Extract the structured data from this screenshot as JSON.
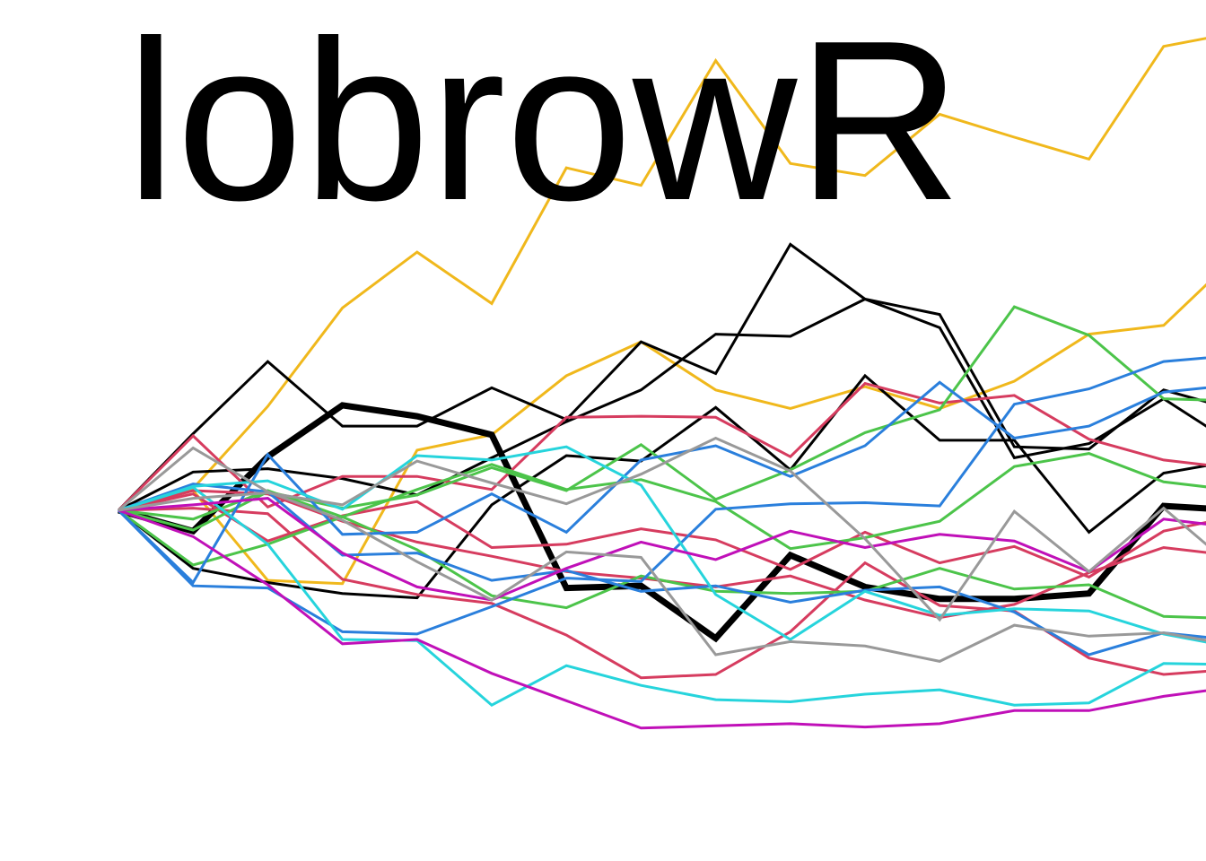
{
  "chart_data": {
    "type": "line",
    "title": "lobrowR",
    "x": [
      0,
      1,
      2,
      3,
      4,
      5,
      6,
      7,
      8,
      9,
      10,
      11,
      12,
      13,
      14,
      15
    ],
    "legend": "none",
    "grid": false,
    "axes_visible": false,
    "series": [
      {
        "color": "#f0b81c",
        "width": 3,
        "values": [
          0,
          0.2,
          0.95,
          1.85,
          2.36,
          1.89,
          3.13,
          2.97,
          4.11,
          3.17,
          3.06,
          3.62,
          3.41,
          3.21,
          4.24,
          4.37
        ]
      },
      {
        "color": "#f0b81c",
        "width": 3,
        "values": [
          0,
          0.18,
          -0.64,
          -0.67,
          0.55,
          0.69,
          1.23,
          1.54,
          1.1,
          0.93,
          1.13,
          0.93,
          1.18,
          1.61,
          1.69,
          2.34
        ]
      },
      {
        "color": "#000000",
        "width": 3,
        "values": [
          0,
          0.7,
          1.36,
          0.77,
          0.77,
          1.12,
          0.83,
          1.54,
          1.25,
          2.43,
          1.93,
          1.67,
          0.48,
          0.61,
          1.02,
          0.58
        ]
      },
      {
        "color": "#000000",
        "width": 3,
        "values": [
          0,
          0.35,
          0.38,
          0.29,
          0.14,
          0.48,
          0.81,
          1.1,
          1.61,
          1.59,
          1.93,
          1.79,
          0.58,
          0.56,
          1.1,
          0.91
        ]
      },
      {
        "color": "#000000",
        "width": 3,
        "values": [
          0,
          -0.53,
          -0.66,
          -0.76,
          -0.8,
          0.05,
          0.5,
          0.45,
          0.94,
          0.37,
          1.23,
          0.64,
          0.64,
          -0.2,
          0.34,
          0.46
        ]
      },
      {
        "color": "#000000",
        "width": 7,
        "values": [
          0,
          -0.19,
          0.49,
          0.96,
          0.86,
          0.69,
          -0.71,
          -0.69,
          -1.17,
          -0.41,
          -0.7,
          -0.81,
          -0.81,
          -0.76,
          0.04,
          0.0
        ]
      },
      {
        "color": "#d63c5f",
        "width": 3,
        "values": [
          0,
          0.68,
          0.03,
          0.31,
          0.31,
          0.19,
          0.85,
          0.86,
          0.85,
          0.49,
          1.16,
          0.98,
          1.05,
          0.65,
          0.46,
          0.38
        ]
      },
      {
        "color": "#d63c5f",
        "width": 3,
        "values": [
          0,
          0.15,
          -0.28,
          -0.05,
          0.08,
          -0.34,
          -0.31,
          -0.17,
          -0.27,
          -0.54,
          -0.2,
          -0.48,
          -0.33,
          -0.61,
          -0.19,
          -0.05
        ]
      },
      {
        "color": "#d63c5f",
        "width": 3,
        "values": [
          0,
          0.02,
          -0.03,
          -0.63,
          -0.77,
          -0.85,
          -1.14,
          -1.53,
          -1.5,
          -1.11,
          -0.48,
          -0.87,
          -0.92,
          -1.35,
          -1.5,
          -1.45
        ]
      },
      {
        "color": "#d63c5f",
        "width": 3,
        "values": [
          0,
          0.18,
          0.15,
          -0.1,
          -0.29,
          -0.42,
          -0.56,
          -0.62,
          -0.7,
          -0.6,
          -0.82,
          -0.98,
          -0.86,
          -0.57,
          -0.34,
          -0.42
        ]
      },
      {
        "color": "#4cc44a",
        "width": 3,
        "values": [
          0,
          -0.18,
          0.17,
          0.02,
          0.14,
          0.39,
          0.18,
          0.6,
          0.1,
          0.37,
          0.71,
          0.92,
          1.86,
          1.6,
          1.02,
          1.0
        ]
      },
      {
        "color": "#4cc44a",
        "width": 3,
        "values": [
          0,
          -0.5,
          -0.31,
          -0.06,
          -0.36,
          -0.78,
          -0.89,
          -0.6,
          -0.74,
          -0.76,
          -0.74,
          -0.53,
          -0.72,
          -0.68,
          -0.97,
          -0.99
        ]
      },
      {
        "color": "#4cc44a",
        "width": 3,
        "values": [
          0,
          -0.08,
          0.18,
          -0.06,
          0.19,
          0.42,
          0.19,
          0.28,
          0.08,
          -0.35,
          -0.25,
          -0.1,
          0.4,
          0.52,
          0.26,
          0.18
        ]
      },
      {
        "color": "#2a7fdc",
        "width": 3,
        "values": [
          0,
          -0.66,
          0.51,
          -0.22,
          -0.2,
          0.15,
          -0.2,
          0.46,
          0.59,
          0.31,
          0.59,
          1.17,
          0.66,
          0.77,
          1.08,
          1.15
        ]
      },
      {
        "color": "#2a7fdc",
        "width": 3,
        "values": [
          0,
          -0.69,
          -0.71,
          -1.11,
          -1.13,
          -0.88,
          -0.62,
          -0.65,
          0.01,
          0.06,
          0.07,
          0.04,
          0.97,
          1.11,
          1.36,
          1.42
        ]
      },
      {
        "color": "#2a7fdc",
        "width": 3,
        "values": [
          0,
          0.24,
          0.17,
          -0.41,
          -0.39,
          -0.64,
          -0.55,
          -0.74,
          -0.69,
          -0.84,
          -0.73,
          -0.7,
          -0.93,
          -1.32,
          -1.12,
          -1.19
        ]
      },
      {
        "color": "#26d4dc",
        "width": 3,
        "values": [
          0,
          0.21,
          -0.31,
          -1.18,
          -1.19,
          -1.78,
          -1.42,
          -1.6,
          -1.73,
          -1.75,
          -1.68,
          -1.64,
          -1.78,
          -1.76,
          -1.4,
          -1.41
        ]
      },
      {
        "color": "#26d4dc",
        "width": 3,
        "values": [
          0,
          0.22,
          0.27,
          0.01,
          0.5,
          0.46,
          0.58,
          0.23,
          -0.77,
          -1.18,
          -0.74,
          -0.96,
          -0.9,
          -0.92,
          -1.13,
          -1.26
        ]
      },
      {
        "color": "#c010b8",
        "width": 3,
        "values": [
          0,
          -0.24,
          -0.68,
          -1.22,
          -1.18,
          -1.49,
          -1.74,
          -1.99,
          -1.97,
          -1.95,
          -1.98,
          -1.95,
          -1.83,
          -1.83,
          -1.7,
          -1.61
        ]
      },
      {
        "color": "#c010b8",
        "width": 3,
        "values": [
          0,
          0.05,
          0.11,
          -0.39,
          -0.7,
          -0.82,
          -0.53,
          -0.29,
          -0.45,
          -0.19,
          -0.34,
          -0.22,
          -0.28,
          -0.56,
          -0.08,
          -0.16
        ]
      },
      {
        "color": "#999999",
        "width": 3,
        "values": [
          0,
          0.57,
          0.17,
          -0.09,
          -0.47,
          -0.82,
          -0.38,
          -0.43,
          -1.32,
          -1.2,
          -1.24,
          -1.38,
          -1.05,
          -1.15,
          -1.12,
          -1.24
        ]
      },
      {
        "color": "#999999",
        "width": 3,
        "values": [
          0,
          0.11,
          0.16,
          0.05,
          0.45,
          0.25,
          0.06,
          0.33,
          0.66,
          0.36,
          -0.26,
          -1.0,
          -0.01,
          -0.56,
          0.02,
          -0.56
        ]
      }
    ]
  }
}
